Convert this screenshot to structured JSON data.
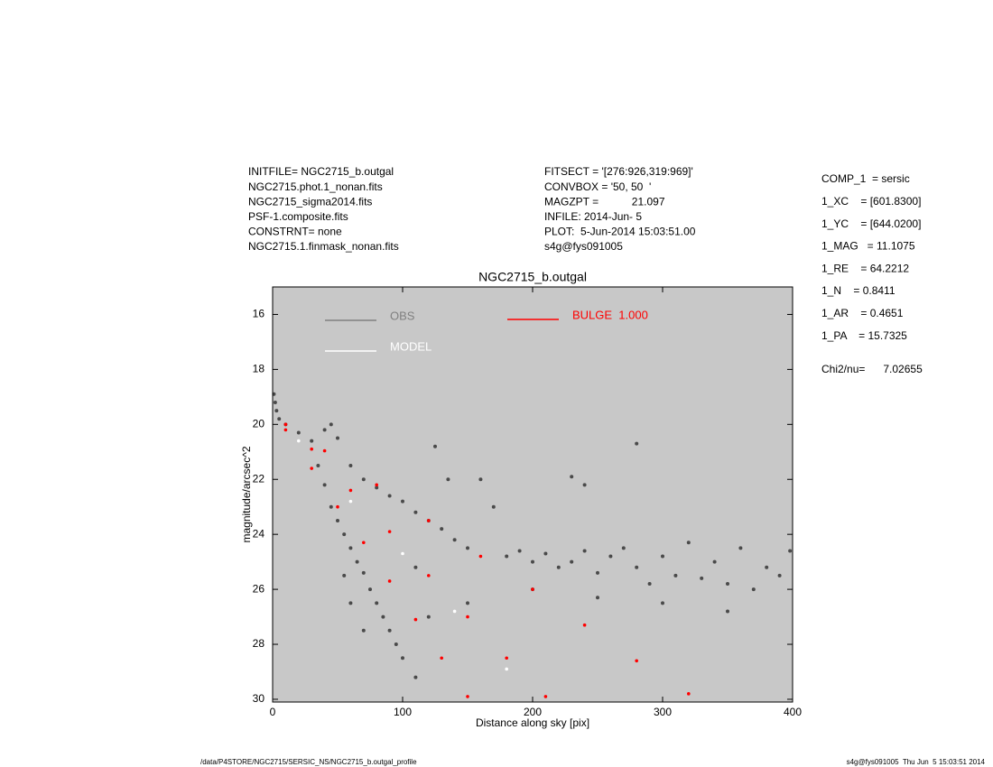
{
  "header": {
    "left": [
      "INITFILE= NGC2715_b.outgal",
      "NGC2715.phot.1_nonan.fits",
      "NGC2715_sigma2014.fits",
      "PSF-1.composite.fits",
      "CONSTRNT= none",
      "NGC2715.1.finmask_nonan.fits"
    ],
    "middle": [
      "FITSECT = '[276:926,319:969]'",
      "CONVBOX = '50, 50  '",
      "MAGZPT =           21.097",
      "INFILE: 2014-Jun- 5",
      "PLOT:  5-Jun-2014 15:03:51.00",
      "s4g@fys091005"
    ]
  },
  "params": [
    "COMP_1  = sersic",
    "1_XC    = [601.8300]",
    "1_YC    = [644.0200]",
    "1_MAG   = 11.1075",
    "1_RE    = 64.2212",
    "1_N    = 0.8411",
    "1_AR    = 0.4651",
    "1_PA    = 15.7325",
    "Chi2/nu=      7.02655"
  ],
  "footer": {
    "left": "/data/P4STORE/NGC2715/SERSIC_NS/NGC2715_b.outgal_profile",
    "right": "s4g@fys091005  Thu Jun  5 15:03:51 2014"
  },
  "chart_data": {
    "type": "scatter",
    "title": "NGC2715_b.outgal",
    "x_label": "Distance along sky [pix]",
    "y_label": "magnitude/arcsec^2",
    "xlim": [
      0,
      400
    ],
    "ylim": [
      30.1,
      15
    ],
    "xticks": [
      0,
      100,
      200,
      300,
      400
    ],
    "yticks": [
      16,
      18,
      20,
      22,
      24,
      26,
      28,
      30
    ],
    "background": "#c8c8c8",
    "series": [
      {
        "name": "OBS",
        "color": "#4a4a4a",
        "x": [
          1,
          2,
          3,
          5,
          10,
          20,
          30,
          40,
          45,
          50,
          35,
          40,
          45,
          50,
          55,
          60,
          65,
          70,
          75,
          80,
          85,
          90,
          95,
          100,
          110,
          60,
          70,
          80,
          90,
          100,
          110,
          120,
          130,
          140,
          150,
          160,
          170,
          180,
          190,
          200,
          210,
          220,
          230,
          240,
          250,
          260,
          270,
          280,
          290,
          300,
          310,
          320,
          330,
          340,
          350,
          360,
          370,
          380,
          390,
          398,
          250,
          300,
          350,
          200,
          150,
          120,
          60,
          70,
          55,
          110,
          135,
          125,
          280,
          230,
          240
        ],
        "values": [
          18.9,
          19.2,
          19.5,
          19.8,
          20.0,
          20.3,
          20.6,
          20.2,
          20.0,
          20.5,
          21.5,
          22.2,
          23.0,
          23.5,
          24.0,
          24.5,
          25.0,
          25.4,
          26.0,
          26.5,
          27.0,
          27.5,
          28.0,
          28.5,
          29.2,
          21.5,
          22.0,
          22.3,
          22.6,
          22.8,
          23.2,
          23.5,
          23.8,
          24.2,
          24.5,
          22.0,
          23.0,
          24.8,
          24.6,
          25.0,
          24.7,
          25.2,
          25.0,
          24.6,
          25.4,
          24.8,
          24.5,
          25.2,
          25.8,
          24.8,
          25.5,
          24.3,
          25.6,
          25.0,
          25.8,
          24.5,
          26.0,
          25.2,
          25.5,
          24.6,
          26.3,
          26.5,
          26.8,
          26.0,
          26.5,
          27.0,
          26.5,
          27.5,
          25.5,
          25.2,
          22.0,
          20.8,
          20.7,
          21.9,
          22.2
        ]
      },
      {
        "name": "MODEL",
        "color": "#ffffff",
        "x": [
          20,
          60,
          100,
          140,
          180
        ],
        "values": [
          20.6,
          22.8,
          24.7,
          26.8,
          28.9
        ]
      },
      {
        "name": "BULGE  1.000",
        "color": "#ff0000",
        "x": [
          10,
          40,
          80,
          120,
          160,
          200,
          240,
          280,
          320,
          10,
          30,
          50,
          70,
          90,
          110,
          130,
          150,
          30,
          60,
          90,
          120,
          150,
          180,
          210
        ],
        "values": [
          20.0,
          20.96,
          22.2,
          23.5,
          24.8,
          26.0,
          27.3,
          28.6,
          29.8,
          20.2,
          21.6,
          23.0,
          24.3,
          25.7,
          27.1,
          28.5,
          29.9,
          20.9,
          22.4,
          23.9,
          25.5,
          27.0,
          28.5,
          29.9
        ]
      }
    ]
  }
}
